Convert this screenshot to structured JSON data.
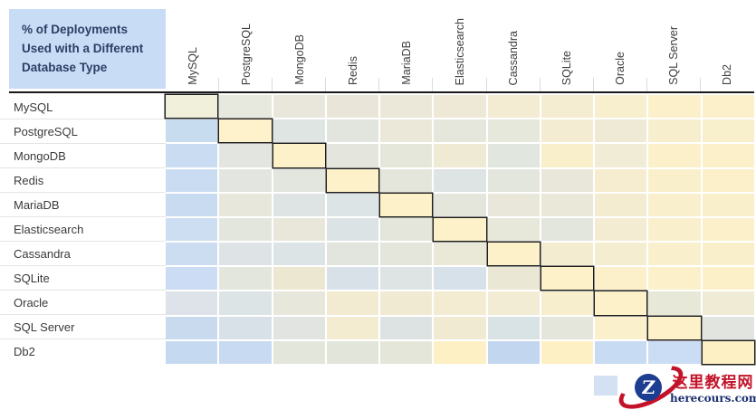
{
  "title": "% of Deployments Used with a Different Database Type",
  "chart_data": {
    "type": "heatmap",
    "title": "% of Deployments Used with a Different Database Type",
    "rows": [
      "MySQL",
      "PostgreSQL",
      "MongoDB",
      "Redis",
      "MariaDB",
      "Elasticsearch",
      "Cassandra",
      "SQLite",
      "Oracle",
      "SQL Server",
      "Db2"
    ],
    "columns": [
      "MySQL",
      "PostgreSQL",
      "MongoDB",
      "Redis",
      "MariaDB",
      "Elasticsearch",
      "Cassandra",
      "SQLite",
      "Oracle",
      "SQL Server",
      "Db2"
    ],
    "values_labeled": false,
    "diagonal_outlined": true,
    "color_scale": {
      "high_pct": "#c5d9f1",
      "mid_pct": "#e3e6dc",
      "low_pct": "#fdf0c5"
    },
    "cell_colors": [
      [
        "#f1f0da",
        "#e7e9df",
        "#e9e7db",
        "#e9e6d9",
        "#ebe8d9",
        "#eee9d6",
        "#f3ecd3",
        "#f5edd1",
        "#f8efce",
        "#fbf0ca",
        "#fbf0ca"
      ],
      [
        "#c8dcf0",
        "#fdf2cc",
        "#dfe5e2",
        "#e2e5de",
        "#ebe8d9",
        "#e5e7dd",
        "#e6e8dc",
        "#f3ecd2",
        "#eeead6",
        "#f7eecd",
        "#f8efcd"
      ],
      [
        "#cadcf2",
        "#e3e6e0",
        "#fdf1ca",
        "#e4e6dd",
        "#e5e7db",
        "#efead4",
        "#e1e6de",
        "#f9efcb",
        "#f0ecd5",
        "#fbf0c9",
        "#fbf0c9"
      ],
      [
        "#cadcf2",
        "#e2e5e0",
        "#e3e5df",
        "#fdf1ca",
        "#e4e6dc",
        "#dde4e3",
        "#e3e6dd",
        "#e8e7d9",
        "#f6edd0",
        "#faefcb",
        "#fbf0ca"
      ],
      [
        "#c9dbf1",
        "#e7e7db",
        "#dee4e4",
        "#dde4e5",
        "#fdf1ca",
        "#e4e6dc",
        "#e8e7d9",
        "#eae8d8",
        "#f4ecd1",
        "#f9efcc",
        "#faefcb"
      ],
      [
        "#cddef2",
        "#e3e6dd",
        "#e8e7d9",
        "#dce3e5",
        "#e4e6db",
        "#fdf1ca",
        "#e7e7da",
        "#e3e6dc",
        "#f3ecd2",
        "#f9efcc",
        "#fbf0ca"
      ],
      [
        "#ccddf2",
        "#dee4e6",
        "#dde4e6",
        "#e2e5de",
        "#e4e6db",
        "#eae8d7",
        "#fdf1ca",
        "#f4ecd1",
        "#f5edd0",
        "#f9efcc",
        "#faefcb"
      ],
      [
        "#ccdcf4",
        "#e2e6dc",
        "#ece7d0",
        "#d8e1e8",
        "#dee4e4",
        "#d7e1ea",
        "#eae8d4",
        "#fdf1ca",
        "#fbf0c9",
        "#fbf0ca",
        "#fcf0c8"
      ],
      [
        "#dde3e8",
        "#dde4e6",
        "#e7e7db",
        "#f2ebd2",
        "#f0ead3",
        "#f4ecd2",
        "#f3ecd4",
        "#f7eecd",
        "#fdf1ca",
        "#e8e8d8",
        "#f0ebd4"
      ],
      [
        "#c9daef",
        "#d8e1e7",
        "#e1e4e0",
        "#f4ecd1",
        "#dde3e3",
        "#f1ead3",
        "#d9e2e5",
        "#e4e6db",
        "#faf0cb",
        "#fdf1ca",
        "#e2e5df"
      ],
      [
        "#c5d9f1",
        "#c7daf1",
        "#e3e6db",
        "#e2e5da",
        "#e4e6da",
        "#fdf0c5",
        "#c2d7ef",
        "#fdf0c5",
        "#c7dbf3",
        "#caddf4",
        "#fdf0c5"
      ]
    ]
  },
  "legend": {
    "swatch_color": "#d3e1f2"
  },
  "watermark": {
    "site_name": "这里教程网",
    "site_url": "herecours.com",
    "logo_letter": "Z",
    "brand_red": "#c3132a",
    "brand_blue": "#1c3d91"
  }
}
